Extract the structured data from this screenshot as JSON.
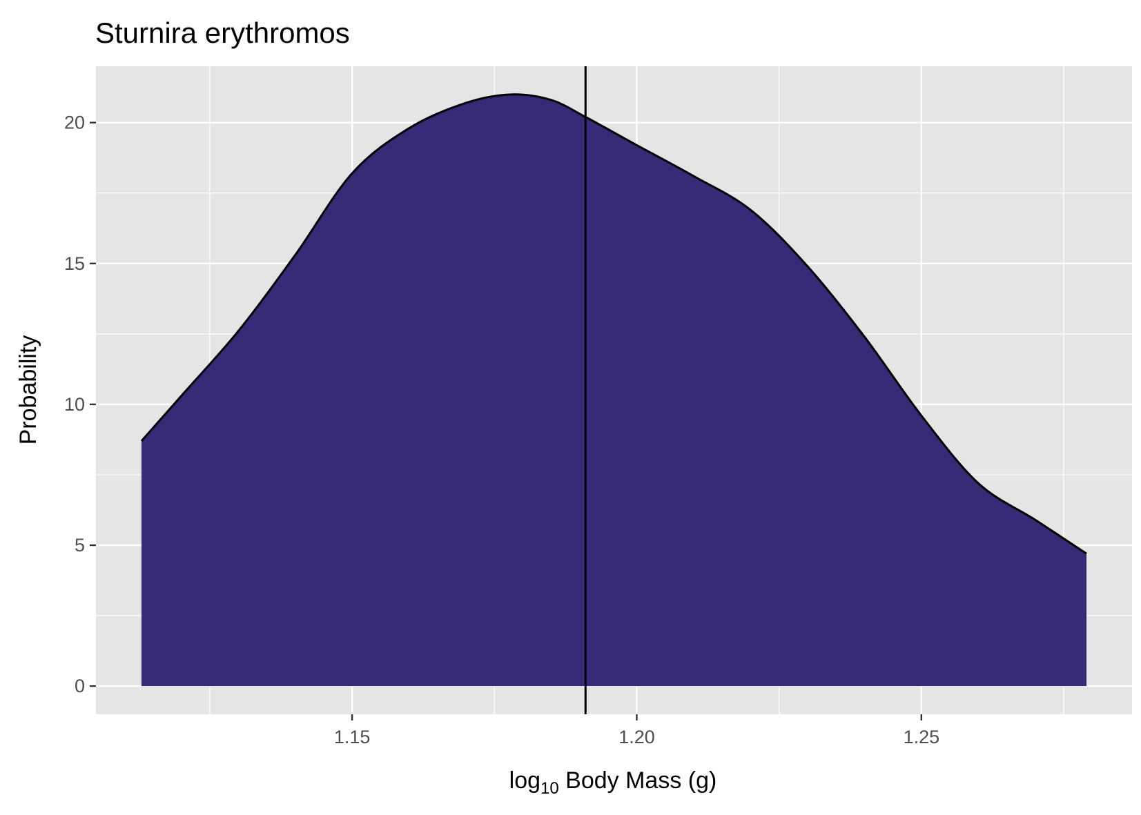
{
  "chart_data": {
    "type": "area",
    "title": "Sturnira erythromos",
    "xlabel": {
      "prefix": "log",
      "subscript": "10",
      "suffix": " Body Mass (g)"
    },
    "ylabel": "Probability",
    "xlim": [
      1.105,
      1.287
    ],
    "ylim": [
      -1,
      22
    ],
    "x_ticks": [
      1.15,
      1.2,
      1.25
    ],
    "x_tick_labels": [
      "1.15",
      "1.20",
      "1.25"
    ],
    "y_ticks": [
      0,
      5,
      10,
      15,
      20
    ],
    "y_tick_labels": [
      "0",
      "5",
      "10",
      "15",
      "20"
    ],
    "grid": true,
    "series": [
      {
        "fill": "#372a77",
        "stroke": "#000000",
        "x": [
          1.113,
          1.12,
          1.13,
          1.14,
          1.15,
          1.16,
          1.17,
          1.178,
          1.185,
          1.191,
          1.2,
          1.21,
          1.22,
          1.23,
          1.24,
          1.25,
          1.26,
          1.27,
          1.279
        ],
        "y": [
          8.7,
          10.3,
          12.6,
          15.3,
          18.2,
          19.8,
          20.7,
          21.0,
          20.8,
          20.2,
          19.2,
          18.1,
          16.9,
          14.9,
          12.4,
          9.6,
          7.2,
          5.9,
          4.7
        ]
      }
    ],
    "vline": {
      "x": 1.191,
      "color": "#000000"
    }
  }
}
